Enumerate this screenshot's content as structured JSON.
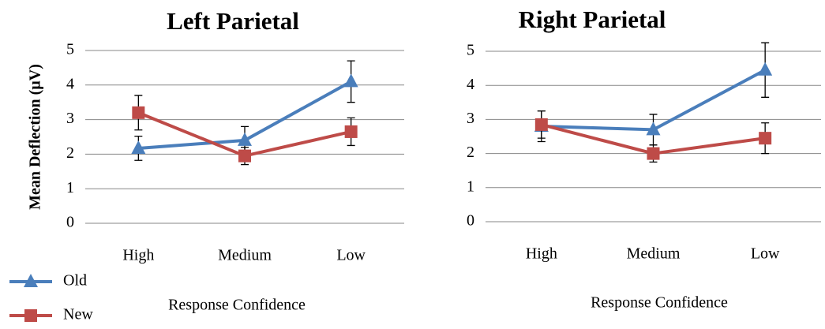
{
  "chart_data": [
    {
      "type": "line",
      "title": "Left Parietal",
      "xlabel": "Response Confidence",
      "ylabel": "Mean Deflection (µV)",
      "categories": [
        "High",
        "Medium",
        "Low"
      ],
      "ylim": [
        0,
        5
      ],
      "yticks": [
        0,
        1,
        2,
        3,
        4,
        5
      ],
      "grid": true,
      "series": [
        {
          "name": "Old",
          "color": "#4a7ebb",
          "marker": "triangle",
          "values": [
            2.17,
            2.4,
            4.1
          ],
          "errors": [
            0.35,
            0.4,
            0.6
          ]
        },
        {
          "name": "New",
          "color": "#be4b48",
          "marker": "square",
          "values": [
            3.2,
            1.95,
            2.65
          ],
          "errors": [
            0.5,
            0.25,
            0.4
          ]
        }
      ]
    },
    {
      "type": "line",
      "title": "Right Parietal",
      "xlabel": "Response Confidence",
      "categories": [
        "High",
        "Medium",
        "Low"
      ],
      "ylim": [
        0,
        5
      ],
      "yticks": [
        0,
        1,
        2,
        3,
        4,
        5
      ],
      "grid": true,
      "series": [
        {
          "name": "Old",
          "color": "#4a7ebb",
          "marker": "triangle",
          "values": [
            2.8,
            2.7,
            4.45
          ],
          "errors": [
            0.45,
            0.45,
            0.8
          ]
        },
        {
          "name": "New",
          "color": "#be4b48",
          "marker": "square",
          "values": [
            2.85,
            2.0,
            2.45
          ],
          "errors": [
            0.4,
            0.25,
            0.45
          ]
        }
      ]
    }
  ]
}
